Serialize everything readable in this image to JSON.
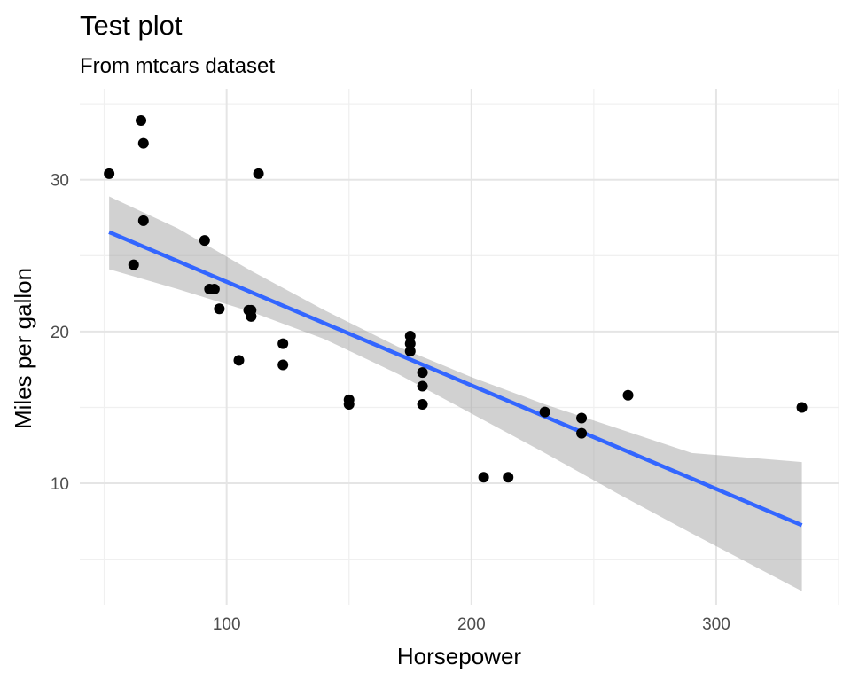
{
  "chart_data": {
    "type": "scatter",
    "title": "Test plot",
    "subtitle": "From mtcars dataset",
    "xlabel": "Horsepower",
    "ylabel": "Miles per gallon",
    "xlim": [
      40,
      350
    ],
    "ylim": [
      2,
      36
    ],
    "x_ticks": [
      100,
      200,
      300
    ],
    "y_ticks": [
      10,
      20,
      30
    ],
    "grid": true,
    "legend": "none",
    "colors": {
      "points": "#000000",
      "fit_line": "#3366FF",
      "ci_band": "#999999"
    },
    "points": [
      {
        "x": 110,
        "y": 21.0
      },
      {
        "x": 110,
        "y": 21.0
      },
      {
        "x": 93,
        "y": 22.8
      },
      {
        "x": 110,
        "y": 21.4
      },
      {
        "x": 175,
        "y": 18.7
      },
      {
        "x": 105,
        "y": 18.1
      },
      {
        "x": 245,
        "y": 14.3
      },
      {
        "x": 62,
        "y": 24.4
      },
      {
        "x": 95,
        "y": 22.8
      },
      {
        "x": 123,
        "y": 19.2
      },
      {
        "x": 123,
        "y": 17.8
      },
      {
        "x": 180,
        "y": 16.4
      },
      {
        "x": 180,
        "y": 17.3
      },
      {
        "x": 180,
        "y": 15.2
      },
      {
        "x": 205,
        "y": 10.4
      },
      {
        "x": 215,
        "y": 10.4
      },
      {
        "x": 230,
        "y": 14.7
      },
      {
        "x": 66,
        "y": 32.4
      },
      {
        "x": 52,
        "y": 30.4
      },
      {
        "x": 65,
        "y": 33.9
      },
      {
        "x": 97,
        "y": 21.5
      },
      {
        "x": 150,
        "y": 15.5
      },
      {
        "x": 150,
        "y": 15.2
      },
      {
        "x": 245,
        "y": 13.3
      },
      {
        "x": 175,
        "y": 19.2
      },
      {
        "x": 66,
        "y": 27.3
      },
      {
        "x": 91,
        "y": 26.0
      },
      {
        "x": 113,
        "y": 30.4
      },
      {
        "x": 264,
        "y": 15.8
      },
      {
        "x": 175,
        "y": 19.7
      },
      {
        "x": 335,
        "y": 15.0
      },
      {
        "x": 109,
        "y": 21.4
      }
    ],
    "fit_line": {
      "method": "linear",
      "x": [
        52,
        335
      ],
      "y": [
        26.55,
        7.24
      ]
    },
    "confidence_band": {
      "x": [
        52,
        80,
        110,
        140,
        170,
        200,
        230,
        260,
        290,
        335
      ],
      "lower": [
        24.1,
        22.8,
        21.3,
        19.5,
        17.2,
        14.6,
        12.0,
        9.3,
        6.7,
        2.9
      ],
      "upper": [
        28.9,
        26.8,
        24.0,
        21.4,
        19.0,
        17.0,
        15.2,
        13.6,
        12.0,
        11.4
      ]
    }
  }
}
